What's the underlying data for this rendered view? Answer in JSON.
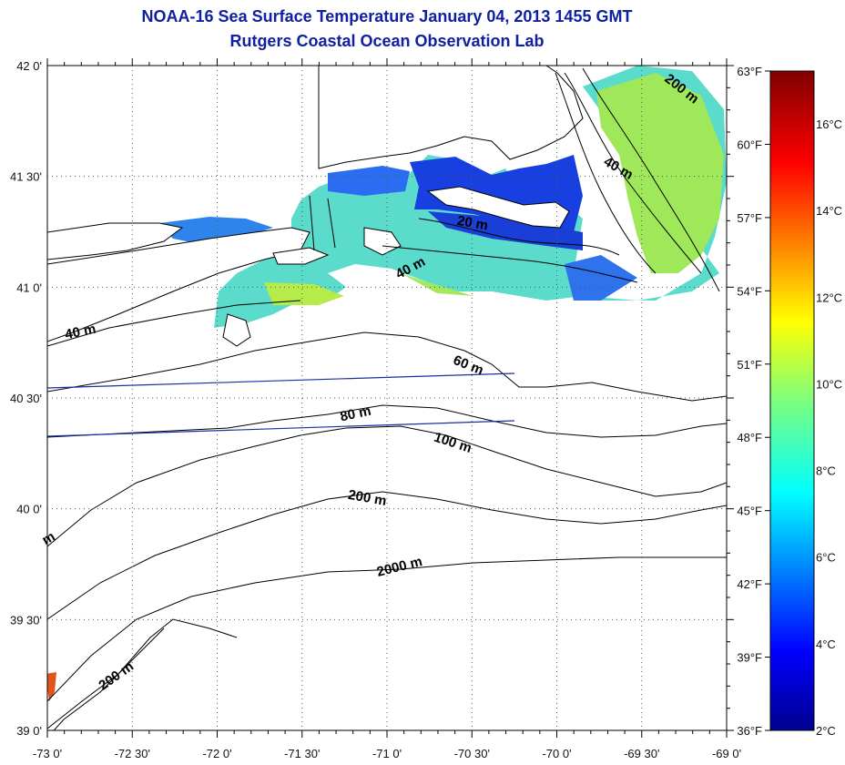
{
  "title": "NOAA-16 Sea Surface Temperature January 04, 2013 1455 GMT",
  "subtitle": "Rutgers Coastal Ocean Observation Lab",
  "map": {
    "lon_labels": [
      "-73 0'",
      "-72 30'",
      "-72 0'",
      "-71 30'",
      "-71 0'",
      "-70 30'",
      "-70 0'",
      "-69 30'",
      "-69 0'"
    ],
    "lat_labels": [
      "42 0'",
      "41 30'",
      "41 0'",
      "40 30'",
      "40 0'",
      "39 30'",
      "39 0'"
    ],
    "contour_labels": [
      {
        "text": "200 m",
        "lon": -69.28,
        "lat": 41.88,
        "rot": 38
      },
      {
        "text": "40 m",
        "lon": -69.65,
        "lat": 41.52,
        "rot": 30
      },
      {
        "text": "20 m",
        "lon": -70.5,
        "lat": 41.27,
        "rot": 10
      },
      {
        "text": "40 m",
        "lon": -70.85,
        "lat": 41.07,
        "rot": -28
      },
      {
        "text": "40 m",
        "lon": -72.8,
        "lat": 40.78,
        "rot": -12
      },
      {
        "text": "60 m",
        "lon": -70.53,
        "lat": 40.63,
        "rot": 22
      },
      {
        "text": "80 m",
        "lon": -71.18,
        "lat": 40.41,
        "rot": -12
      },
      {
        "text": "100 m",
        "lon": -70.62,
        "lat": 40.28,
        "rot": 18
      },
      {
        "text": "200 m",
        "lon": -71.12,
        "lat": 40.03,
        "rot": 10
      },
      {
        "text": "2000 m",
        "lon": -70.92,
        "lat": 39.72,
        "rot": -14
      },
      {
        "text": "200 m",
        "lon": -72.58,
        "lat": 39.23,
        "rot": -35
      },
      {
        "text": "m",
        "lon": -72.98,
        "lat": 39.85,
        "rot": -30
      }
    ]
  },
  "colorbar": {
    "fahrenheit_labels": [
      "63°F",
      "60°F",
      "57°F",
      "54°F",
      "51°F",
      "48°F",
      "45°F",
      "42°F",
      "39°F",
      "36°F"
    ],
    "celsius_labels": [
      "16°C",
      "14°C",
      "12°C",
      "10°C",
      "8°C",
      "6°C",
      "4°C",
      "2°C"
    ]
  }
}
